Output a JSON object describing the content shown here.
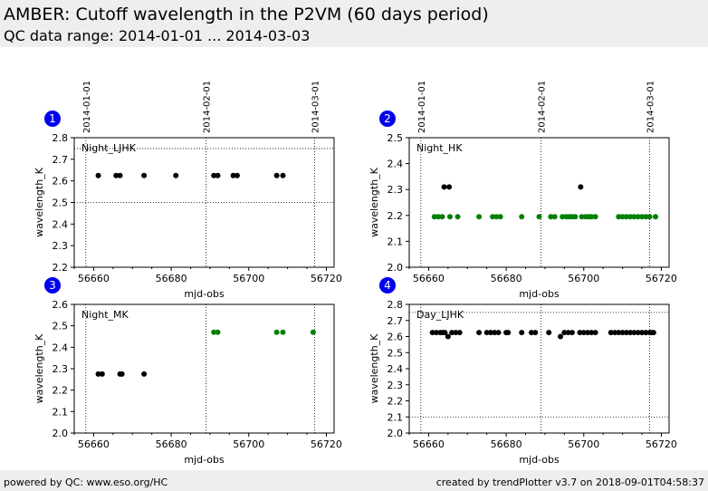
{
  "header": {
    "title": "AMBER: Cutoff wavelength in the P2VM (60 days period)",
    "subtitle": "QC data range: 2014-01-01 ... 2014-03-03"
  },
  "footer": {
    "left": "powered by QC: www.eso.org/HC",
    "right": "created by trendPlotter v3.7 on 2018-09-01T04:58:37"
  },
  "colors": {
    "black": "#000000",
    "green": "#008000",
    "badge": "#0000ee"
  },
  "date_markers": [
    {
      "label": "2014-01-01",
      "mjd": 56658
    },
    {
      "label": "2014-02-01",
      "mjd": 56689
    },
    {
      "label": "2014-03-01",
      "mjd": 56717
    }
  ],
  "chart_data": [
    {
      "type": "scatter",
      "badge": "1",
      "label": "Night_LJHK",
      "xlabel": "mjd-obs",
      "ylabel": "wavelength_K",
      "xlim": [
        56655,
        56722
      ],
      "ylim": [
        2.2,
        2.8
      ],
      "xticks": [
        56660,
        56680,
        56700,
        56720
      ],
      "yticks": [
        2.2,
        2.3,
        2.4,
        2.5,
        2.6,
        2.7,
        2.8
      ],
      "hlines": [
        2.5,
        2.75
      ],
      "series": [
        {
          "color": "black",
          "x": [
            56661.2,
            56665.8,
            56666.8,
            56673.0,
            56681.2,
            56691.0,
            56692.0,
            56696.0,
            56697.0,
            56707.2,
            56708.8
          ],
          "y": [
            2.625,
            2.625,
            2.625,
            2.625,
            2.625,
            2.625,
            2.625,
            2.625,
            2.625,
            2.625,
            2.625
          ]
        }
      ]
    },
    {
      "type": "scatter",
      "badge": "2",
      "label": "Night_HK",
      "xlabel": "mjd-obs",
      "ylabel": "wavelength_K",
      "xlim": [
        56655,
        56722
      ],
      "ylim": [
        2.0,
        2.5
      ],
      "xticks": [
        56660,
        56680,
        56700,
        56720
      ],
      "yticks": [
        2.0,
        2.1,
        2.2,
        2.3,
        2.4,
        2.5
      ],
      "hlines": [],
      "series": [
        {
          "color": "green",
          "x": [
            56661.5,
            56662.5,
            56663.5,
            56665.5,
            56667.5,
            56673.0,
            56676.5,
            56677.5,
            56678.5,
            56684.0,
            56688.5,
            56691.5,
            56692.5,
            56694.5,
            56695.5,
            56696.3,
            56697.0,
            56697.8,
            56699.5,
            56700.5,
            56701.3,
            56702.0,
            56703.0,
            56709.0,
            56710.0,
            56711.0,
            56712.0,
            56713.0,
            56714.0,
            56715.0,
            56716.0,
            56717.0,
            56718.5
          ],
          "y": [
            2.195,
            2.195,
            2.195,
            2.195,
            2.195,
            2.195,
            2.195,
            2.195,
            2.195,
            2.195,
            2.195,
            2.195,
            2.195,
            2.195,
            2.195,
            2.195,
            2.195,
            2.195,
            2.195,
            2.195,
            2.195,
            2.195,
            2.195,
            2.195,
            2.195,
            2.195,
            2.195,
            2.195,
            2.195,
            2.195,
            2.195,
            2.195,
            2.195
          ]
        },
        {
          "color": "black",
          "x": [
            56664.0,
            56665.3,
            56699.2
          ],
          "y": [
            2.31,
            2.31,
            2.31
          ]
        }
      ]
    },
    {
      "type": "scatter",
      "badge": "3",
      "label": "Night_MK",
      "xlabel": "mjd-obs",
      "ylabel": "wavelength_K",
      "xlim": [
        56655,
        56722
      ],
      "ylim": [
        2.0,
        2.6
      ],
      "xticks": [
        56660,
        56680,
        56700,
        56720
      ],
      "yticks": [
        2.0,
        2.1,
        2.2,
        2.3,
        2.4,
        2.5,
        2.6
      ],
      "hlines": [],
      "series": [
        {
          "color": "black",
          "x": [
            56661.2,
            56662.2,
            56666.8,
            56667.3,
            56673.0
          ],
          "y": [
            2.275,
            2.275,
            2.275,
            2.275,
            2.275
          ]
        },
        {
          "color": "green",
          "x": [
            56691.0,
            56692.0,
            56707.2,
            56708.8,
            56716.6
          ],
          "y": [
            2.47,
            2.47,
            2.47,
            2.47,
            2.47
          ]
        }
      ]
    },
    {
      "type": "scatter",
      "badge": "4",
      "label": "Day_LJHK",
      "xlabel": "mjd-obs",
      "ylabel": "wavelength_K",
      "xlim": [
        56655,
        56722
      ],
      "ylim": [
        2.0,
        2.8
      ],
      "xticks": [
        56660,
        56680,
        56700,
        56720
      ],
      "yticks": [
        2.0,
        2.1,
        2.2,
        2.3,
        2.4,
        2.5,
        2.6,
        2.7,
        2.8
      ],
      "hlines": [
        2.1,
        2.75
      ],
      "series": [
        {
          "color": "black",
          "x": [
            56661.0,
            56662.0,
            56663.0,
            56663.6,
            56664.2,
            56665.0,
            56666.0,
            56667.0,
            56668.0,
            56673.0,
            56675.0,
            56676.0,
            56677.0,
            56678.0,
            56680.0,
            56680.5,
            56684.0,
            56686.5,
            56687.5,
            56691.0,
            56694.0,
            56695.0,
            56696.0,
            56697.0,
            56699.0,
            56700.0,
            56701.0,
            56702.0,
            56703.0,
            56707.0,
            56708.0,
            56709.0,
            56710.0,
            56711.0,
            56712.0,
            56713.0,
            56714.0,
            56715.0,
            56716.0,
            56717.0,
            56717.5,
            56718.0
          ],
          "y": [
            2.625,
            2.625,
            2.625,
            2.625,
            2.625,
            2.6,
            2.625,
            2.625,
            2.625,
            2.625,
            2.625,
            2.625,
            2.625,
            2.625,
            2.625,
            2.625,
            2.625,
            2.625,
            2.625,
            2.625,
            2.6,
            2.625,
            2.625,
            2.625,
            2.625,
            2.625,
            2.625,
            2.625,
            2.625,
            2.625,
            2.625,
            2.625,
            2.625,
            2.625,
            2.625,
            2.625,
            2.625,
            2.625,
            2.625,
            2.625,
            2.625,
            2.625
          ]
        }
      ]
    }
  ]
}
